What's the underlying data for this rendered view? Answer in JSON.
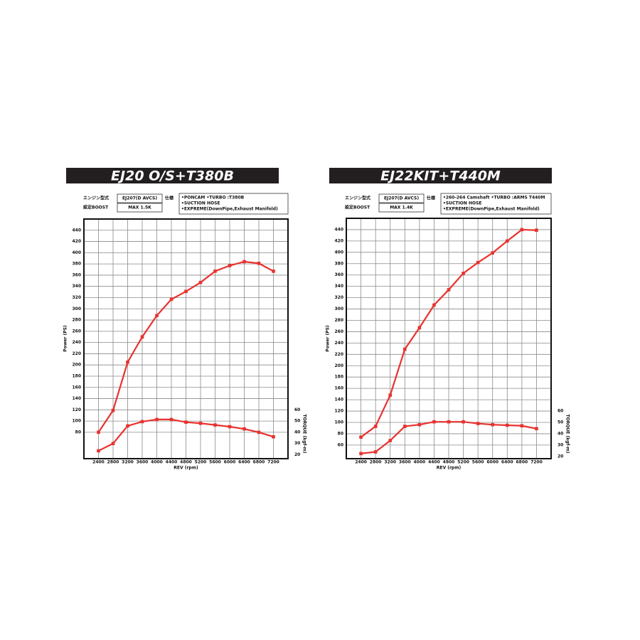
{
  "chart_data": [
    {
      "type": "line",
      "title": "EJ20 O/S+T380B",
      "info": {
        "engine_label": "エンジン型式",
        "engine": "EJ207(D AVCS)",
        "spec_label": "仕様",
        "boost_label": "設定BOOST",
        "boost": "MAX 1.5K",
        "spec": [
          "•PONCAM     •TURBO :T380B",
          "•SUCTION HOSE",
          "•EXPREME(DownPipe,Exhaust Manifold)"
        ]
      },
      "x_label": "REV (rpm)",
      "y_label": "Power (PS)",
      "y2_label": "TORQUE (kgf-m)",
      "x": [
        2400,
        2800,
        3200,
        3600,
        4000,
        4400,
        4800,
        5200,
        5600,
        6000,
        6400,
        6800,
        7200
      ],
      "xlim": [
        2000,
        7600
      ],
      "xticks": [
        2400,
        2800,
        3200,
        3600,
        4000,
        4400,
        4800,
        5200,
        5600,
        6000,
        6400,
        6800,
        7200
      ],
      "ylim": [
        33,
        460
      ],
      "yticks": [
        80,
        100,
        120,
        140,
        160,
        180,
        200,
        220,
        240,
        260,
        280,
        300,
        320,
        340,
        360,
        380,
        400,
        420,
        440
      ],
      "y2lim": [
        16.5,
        230
      ],
      "y2ticks": [
        20,
        30,
        40,
        50,
        60
      ],
      "grid": true,
      "series": [
        {
          "color": "#e8322e",
          "values": [
            80,
            119,
            205,
            250,
            288,
            317,
            331,
            347,
            367,
            377,
            384,
            381,
            367
          ]
        },
        {
          "color": "#e8322e",
          "axis": "y2",
          "values": [
            23.5,
            30,
            45.7,
            49.5,
            51.4,
            51.4,
            49,
            48,
            46.5,
            45,
            43,
            40,
            36
          ]
        }
      ]
    },
    {
      "type": "line",
      "title": "EJ22KIT+T440M",
      "info": {
        "engine_label": "エンジン型式",
        "engine": "EJ207(D AVCS)",
        "spec_label": "仕様",
        "boost_label": "設定BOOST",
        "boost": "MAX 1.4K",
        "spec": [
          "•260-264 Camshaft  •TURBO :ARMS T440M",
          "•SUCTION HOSE",
          "•EXPREME(DownPipe,Exhaust Manifold)"
        ]
      },
      "x_label": "REV (rpm)",
      "y_label": "Power (PS)",
      "y2_label": "TORQUE (kgf-m)",
      "x": [
        2400,
        2800,
        3200,
        3600,
        4000,
        4400,
        4800,
        5200,
        5600,
        6000,
        6400,
        6800,
        7200
      ],
      "xlim": [
        2000,
        7600
      ],
      "xticks": [
        2400,
        2800,
        3200,
        3600,
        4000,
        4400,
        4800,
        5200,
        5600,
        6000,
        6400,
        6800,
        7200
      ],
      "ylim": [
        36,
        460
      ],
      "yticks": [
        60,
        80,
        100,
        120,
        140,
        160,
        180,
        200,
        220,
        240,
        260,
        280,
        300,
        320,
        340,
        360,
        380,
        400,
        420,
        440
      ],
      "y2lim": [
        18,
        230
      ],
      "y2ticks": [
        20,
        30,
        40,
        50,
        60
      ],
      "grid": true,
      "series": [
        {
          "color": "#e8322e",
          "values": [
            74,
            93,
            148,
            229,
            267,
            307,
            334,
            363,
            382,
            399,
            420,
            440,
            439
          ]
        },
        {
          "color": "#e8322e",
          "axis": "y2",
          "values": [
            22.5,
            24,
            34,
            46.5,
            48,
            50.5,
            50.5,
            50.5,
            49,
            48,
            47.5,
            47,
            44.5
          ]
        }
      ]
    }
  ]
}
